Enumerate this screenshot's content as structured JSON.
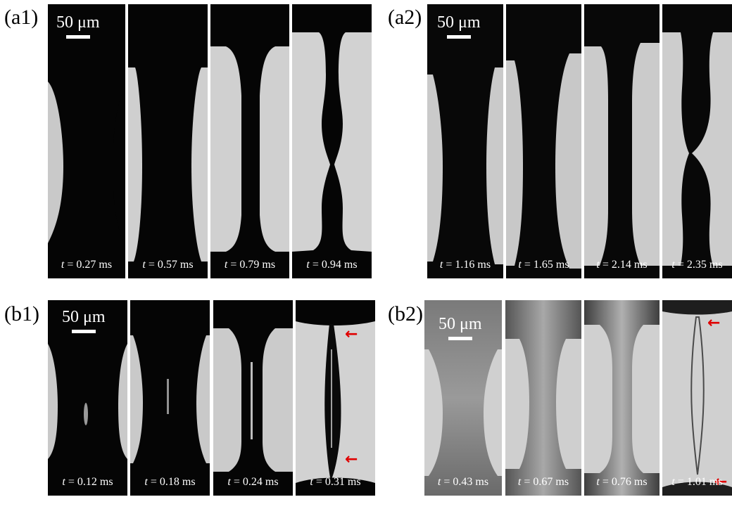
{
  "panel_labels": {
    "a1": "(a1)",
    "a2": "(a2)",
    "b1": "(b1)",
    "b2": "(b2)"
  },
  "scale_bar": "50 μm",
  "time_prefix": "t",
  "time_unit": " ms",
  "times": {
    "a1": [
      "= 0.27",
      "= 0.57",
      "= 0.79",
      "= 0.94"
    ],
    "a2": [
      "= 1.16",
      "= 1.65",
      "= 2.14",
      "= 2.35"
    ],
    "b1": [
      "= 0.12",
      "= 0.18",
      "= 0.24",
      "= 0.31"
    ],
    "b2": [
      "= 0.43",
      "= 0.67",
      "= 0.76",
      "= 1.01"
    ]
  },
  "arrow_glyph": "←",
  "colors": {
    "liquid": "#0b0b0b",
    "background": "#d2d2d2",
    "arrow": "#e00000"
  }
}
